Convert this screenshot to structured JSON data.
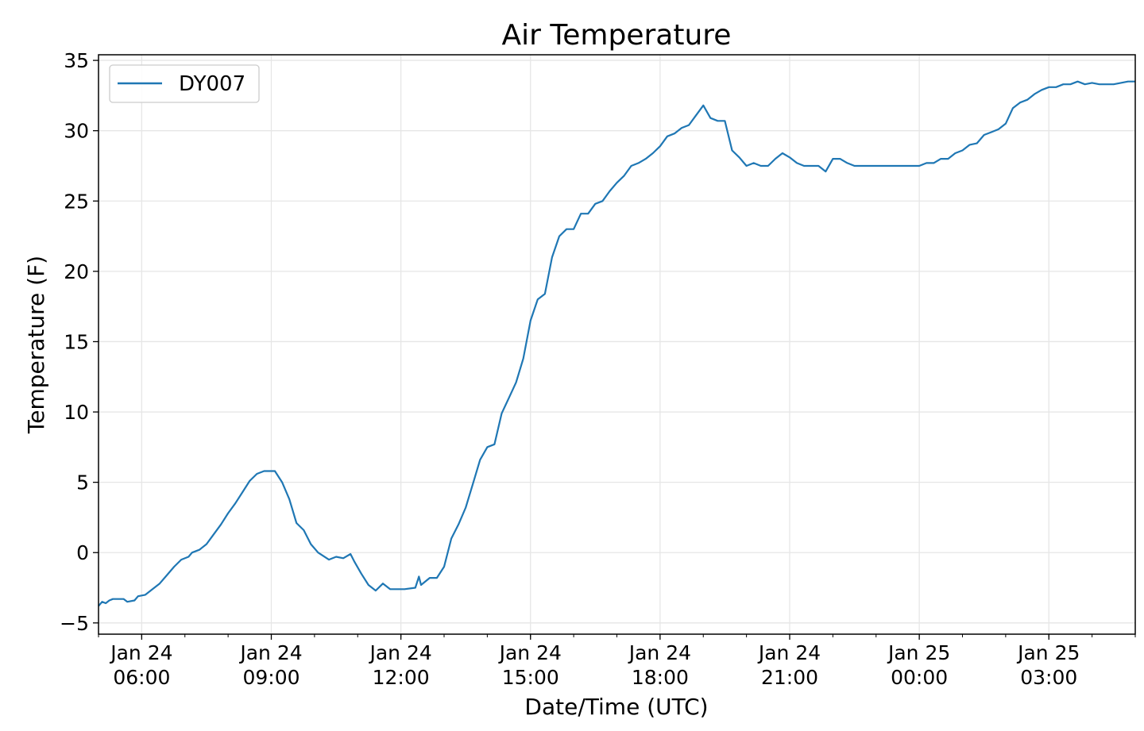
{
  "chart_data": {
    "type": "line",
    "title": "Air Temperature",
    "xlabel": "Date/Time (UTC)",
    "ylabel": "Temperature (F)",
    "xlim": [
      "2024-01-24 05:00",
      "2024-01-25 05:00"
    ],
    "ylim": [
      -5.8,
      35.4
    ],
    "y_ticks": [
      -5,
      0,
      5,
      10,
      15,
      20,
      25,
      30,
      35
    ],
    "x_ticks": [
      {
        "at": "2024-01-24 06:00",
        "line1": "Jan 24",
        "line2": "06:00"
      },
      {
        "at": "2024-01-24 09:00",
        "line1": "Jan 24",
        "line2": "09:00"
      },
      {
        "at": "2024-01-24 12:00",
        "line1": "Jan 24",
        "line2": "12:00"
      },
      {
        "at": "2024-01-24 15:00",
        "line1": "Jan 24",
        "line2": "15:00"
      },
      {
        "at": "2024-01-24 18:00",
        "line1": "Jan 24",
        "line2": "18:00"
      },
      {
        "at": "2024-01-24 21:00",
        "line1": "Jan 24",
        "line2": "21:00"
      },
      {
        "at": "2024-01-25 00:00",
        "line1": "Jan 25",
        "line2": "00:00"
      },
      {
        "at": "2024-01-25 03:00",
        "line1": "Jan 25",
        "line2": "03:00"
      }
    ],
    "grid": true,
    "legend_position": "top-left",
    "series": [
      {
        "name": "DY007",
        "color": "#1f77b4",
        "points": [
          [
            "2024-01-24 05:00",
            -3.8
          ],
          [
            "2024-01-24 05:05",
            -3.5
          ],
          [
            "2024-01-24 05:10",
            -3.6
          ],
          [
            "2024-01-24 05:15",
            -3.4
          ],
          [
            "2024-01-24 05:20",
            -3.3
          ],
          [
            "2024-01-24 05:35",
            -3.3
          ],
          [
            "2024-01-24 05:40",
            -3.5
          ],
          [
            "2024-01-24 05:50",
            -3.4
          ],
          [
            "2024-01-24 05:55",
            -3.1
          ],
          [
            "2024-01-24 06:05",
            -3.0
          ],
          [
            "2024-01-24 06:15",
            -2.6
          ],
          [
            "2024-01-24 06:25",
            -2.2
          ],
          [
            "2024-01-24 06:35",
            -1.6
          ],
          [
            "2024-01-24 06:45",
            -1.0
          ],
          [
            "2024-01-24 06:55",
            -0.5
          ],
          [
            "2024-01-24 07:05",
            -0.3
          ],
          [
            "2024-01-24 07:10",
            0.0
          ],
          [
            "2024-01-24 07:20",
            0.2
          ],
          [
            "2024-01-24 07:30",
            0.6
          ],
          [
            "2024-01-24 07:40",
            1.3
          ],
          [
            "2024-01-24 07:50",
            2.0
          ],
          [
            "2024-01-24 08:00",
            2.8
          ],
          [
            "2024-01-24 08:10",
            3.5
          ],
          [
            "2024-01-24 08:20",
            4.3
          ],
          [
            "2024-01-24 08:30",
            5.1
          ],
          [
            "2024-01-24 08:40",
            5.6
          ],
          [
            "2024-01-24 08:50",
            5.8
          ],
          [
            "2024-01-24 09:05",
            5.8
          ],
          [
            "2024-01-24 09:15",
            5.0
          ],
          [
            "2024-01-24 09:25",
            3.8
          ],
          [
            "2024-01-24 09:35",
            2.1
          ],
          [
            "2024-01-24 09:45",
            1.6
          ],
          [
            "2024-01-24 09:55",
            0.6
          ],
          [
            "2024-01-24 10:05",
            0.0
          ],
          [
            "2024-01-24 10:20",
            -0.5
          ],
          [
            "2024-01-24 10:30",
            -0.3
          ],
          [
            "2024-01-24 10:40",
            -0.4
          ],
          [
            "2024-01-24 10:50",
            -0.1
          ],
          [
            "2024-01-24 10:55",
            -0.6
          ],
          [
            "2024-01-24 11:05",
            -1.5
          ],
          [
            "2024-01-24 11:15",
            -2.3
          ],
          [
            "2024-01-24 11:25",
            -2.7
          ],
          [
            "2024-01-24 11:35",
            -2.2
          ],
          [
            "2024-01-24 11:45",
            -2.6
          ],
          [
            "2024-01-24 12:05",
            -2.6
          ],
          [
            "2024-01-24 12:20",
            -2.5
          ],
          [
            "2024-01-24 12:25",
            -1.7
          ],
          [
            "2024-01-24 12:28",
            -2.3
          ],
          [
            "2024-01-24 12:40",
            -1.8
          ],
          [
            "2024-01-24 12:50",
            -1.8
          ],
          [
            "2024-01-24 13:00",
            -1.0
          ],
          [
            "2024-01-24 13:10",
            1.0
          ],
          [
            "2024-01-24 13:20",
            2.0
          ],
          [
            "2024-01-24 13:30",
            3.2
          ],
          [
            "2024-01-24 13:40",
            4.9
          ],
          [
            "2024-01-24 13:50",
            6.6
          ],
          [
            "2024-01-24 14:00",
            7.5
          ],
          [
            "2024-01-24 14:10",
            7.7
          ],
          [
            "2024-01-24 14:20",
            9.9
          ],
          [
            "2024-01-24 14:30",
            11.0
          ],
          [
            "2024-01-24 14:40",
            12.1
          ],
          [
            "2024-01-24 14:50",
            13.8
          ],
          [
            "2024-01-24 15:00",
            16.5
          ],
          [
            "2024-01-24 15:10",
            18.0
          ],
          [
            "2024-01-24 15:20",
            18.4
          ],
          [
            "2024-01-24 15:30",
            21.0
          ],
          [
            "2024-01-24 15:40",
            22.5
          ],
          [
            "2024-01-24 15:50",
            23.0
          ],
          [
            "2024-01-24 16:00",
            23.0
          ],
          [
            "2024-01-24 16:10",
            24.1
          ],
          [
            "2024-01-24 16:20",
            24.1
          ],
          [
            "2024-01-24 16:30",
            24.8
          ],
          [
            "2024-01-24 16:40",
            25.0
          ],
          [
            "2024-01-24 16:50",
            25.7
          ],
          [
            "2024-01-24 17:00",
            26.3
          ],
          [
            "2024-01-24 17:10",
            26.8
          ],
          [
            "2024-01-24 17:20",
            27.5
          ],
          [
            "2024-01-24 17:30",
            27.7
          ],
          [
            "2024-01-24 17:40",
            28.0
          ],
          [
            "2024-01-24 17:50",
            28.4
          ],
          [
            "2024-01-24 18:00",
            28.9
          ],
          [
            "2024-01-24 18:10",
            29.6
          ],
          [
            "2024-01-24 18:20",
            29.8
          ],
          [
            "2024-01-24 18:30",
            30.2
          ],
          [
            "2024-01-24 18:40",
            30.4
          ],
          [
            "2024-01-24 18:50",
            31.1
          ],
          [
            "2024-01-24 19:00",
            31.8
          ],
          [
            "2024-01-24 19:10",
            30.9
          ],
          [
            "2024-01-24 19:20",
            30.7
          ],
          [
            "2024-01-24 19:30",
            30.7
          ],
          [
            "2024-01-24 19:40",
            28.6
          ],
          [
            "2024-01-24 19:50",
            28.1
          ],
          [
            "2024-01-24 20:00",
            27.5
          ],
          [
            "2024-01-24 20:10",
            27.7
          ],
          [
            "2024-01-24 20:20",
            27.5
          ],
          [
            "2024-01-24 20:30",
            27.5
          ],
          [
            "2024-01-24 20:40",
            28.0
          ],
          [
            "2024-01-24 20:50",
            28.4
          ],
          [
            "2024-01-24 21:00",
            28.1
          ],
          [
            "2024-01-24 21:10",
            27.7
          ],
          [
            "2024-01-24 21:20",
            27.5
          ],
          [
            "2024-01-24 21:40",
            27.5
          ],
          [
            "2024-01-24 21:50",
            27.1
          ],
          [
            "2024-01-24 22:00",
            28.0
          ],
          [
            "2024-01-24 22:10",
            28.0
          ],
          [
            "2024-01-24 22:20",
            27.7
          ],
          [
            "2024-01-24 22:30",
            27.5
          ],
          [
            "2024-01-25 00:00",
            27.5
          ],
          [
            "2024-01-25 00:10",
            27.7
          ],
          [
            "2024-01-25 00:20",
            27.7
          ],
          [
            "2024-01-25 00:30",
            28.0
          ],
          [
            "2024-01-25 00:40",
            28.0
          ],
          [
            "2024-01-25 00:50",
            28.4
          ],
          [
            "2024-01-25 01:00",
            28.6
          ],
          [
            "2024-01-25 01:10",
            29.0
          ],
          [
            "2024-01-25 01:20",
            29.1
          ],
          [
            "2024-01-25 01:30",
            29.7
          ],
          [
            "2024-01-25 01:40",
            29.9
          ],
          [
            "2024-01-25 01:50",
            30.1
          ],
          [
            "2024-01-25 02:00",
            30.5
          ],
          [
            "2024-01-25 02:10",
            31.6
          ],
          [
            "2024-01-25 02:20",
            32.0
          ],
          [
            "2024-01-25 02:30",
            32.2
          ],
          [
            "2024-01-25 02:40",
            32.6
          ],
          [
            "2024-01-25 02:50",
            32.9
          ],
          [
            "2024-01-25 03:00",
            33.1
          ],
          [
            "2024-01-25 03:10",
            33.1
          ],
          [
            "2024-01-25 03:20",
            33.3
          ],
          [
            "2024-01-25 03:30",
            33.3
          ],
          [
            "2024-01-25 03:40",
            33.5
          ],
          [
            "2024-01-25 03:50",
            33.3
          ],
          [
            "2024-01-25 04:00",
            33.4
          ],
          [
            "2024-01-25 04:10",
            33.3
          ],
          [
            "2024-01-25 04:30",
            33.3
          ],
          [
            "2024-01-25 04:40",
            33.4
          ],
          [
            "2024-01-25 04:50",
            33.5
          ],
          [
            "2024-01-25 05:00",
            33.5
          ]
        ]
      }
    ]
  }
}
